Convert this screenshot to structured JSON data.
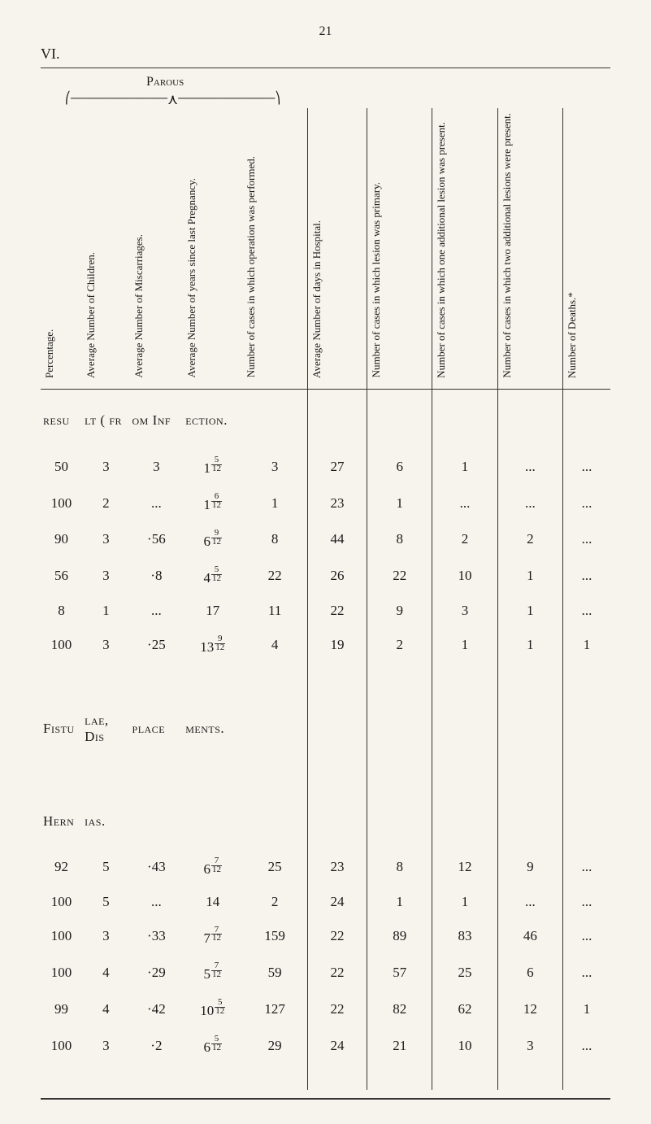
{
  "page_number": "21",
  "section_number": "VI.",
  "parous_label": "Parous",
  "columns": [
    "Percentage.",
    "Average\nNumber of\nChildren.",
    "Average\nNumber of\nMiscarriages.",
    "Average\nNumber of\nyears since\nlast Pregnancy.",
    "Number of cases in\nwhich operation was\nperformed.",
    "Average Number of\ndays in Hospital.",
    "Number of cases in\nwhich lesion was\nprimary.",
    "Number of cases in\nwhich one additional\nlesion was present.",
    "Number of cases in\nwhich two additional\nlesions were present.",
    "Number of Deaths.*"
  ],
  "sections": [
    {
      "title_parts": [
        "resu",
        "lt   ( fr",
        "om Inf",
        "ection."
      ],
      "rows": [
        {
          "cells": [
            "50",
            "3",
            "3",
            "1⁵⁄₁₂",
            "3",
            "27",
            "6",
            "1",
            "...",
            "..."
          ]
        },
        {
          "cells": [
            "100",
            "2",
            "...",
            "1⁶⁄₁₂",
            "1",
            "23",
            "1",
            "...",
            "...",
            "..."
          ]
        },
        {
          "cells": [
            "90",
            "3",
            "·56",
            "6⁹⁄₁₂",
            "8",
            "44",
            "8",
            "2",
            "2",
            "..."
          ]
        },
        {
          "cells": [
            "56",
            "3",
            "·8",
            "4⁵⁄₁₂",
            "22",
            "26",
            "22",
            "10",
            "1",
            "..."
          ]
        },
        {
          "cells": [
            "8",
            "1",
            "...",
            "17",
            "11",
            "22",
            "9",
            "3",
            "1",
            "..."
          ]
        },
        {
          "cells": [
            "100",
            "3",
            "·25",
            "13⁹⁄₁₂",
            "4",
            "19",
            "2",
            "1",
            "1",
            "1"
          ]
        }
      ]
    },
    {
      "title_parts": [
        "Fistu",
        "lae, Dis",
        "place",
        "ments."
      ],
      "rows": []
    },
    {
      "title_parts": [
        "Hern",
        "ias.",
        "",
        ""
      ],
      "rows": [
        {
          "cells": [
            "92",
            "5",
            "·43",
            "6⁷⁄₁₂",
            "25",
            "23",
            "8",
            "12",
            "9",
            "..."
          ]
        },
        {
          "cells": [
            "100",
            "5",
            "...",
            "14",
            "2",
            "24",
            "1",
            "1",
            "...",
            "..."
          ]
        },
        {
          "cells": [
            "100",
            "3",
            "·33",
            "7⁷⁄₁₂",
            "159",
            "22",
            "89",
            "83",
            "46",
            "..."
          ]
        },
        {
          "cells": [
            "100",
            "4",
            "·29",
            "5⁷⁄₁₂",
            "59",
            "22",
            "57",
            "25",
            "6",
            "..."
          ]
        },
        {
          "cells": [
            "99",
            "4",
            "·42",
            "10⁵⁄₁₂",
            "127",
            "22",
            "82",
            "62",
            "12",
            "1"
          ]
        },
        {
          "cells": [
            "100",
            "3",
            "·2",
            "6⁵⁄₁₂",
            "29",
            "24",
            "21",
            "10",
            "3",
            "..."
          ]
        }
      ]
    }
  ]
}
